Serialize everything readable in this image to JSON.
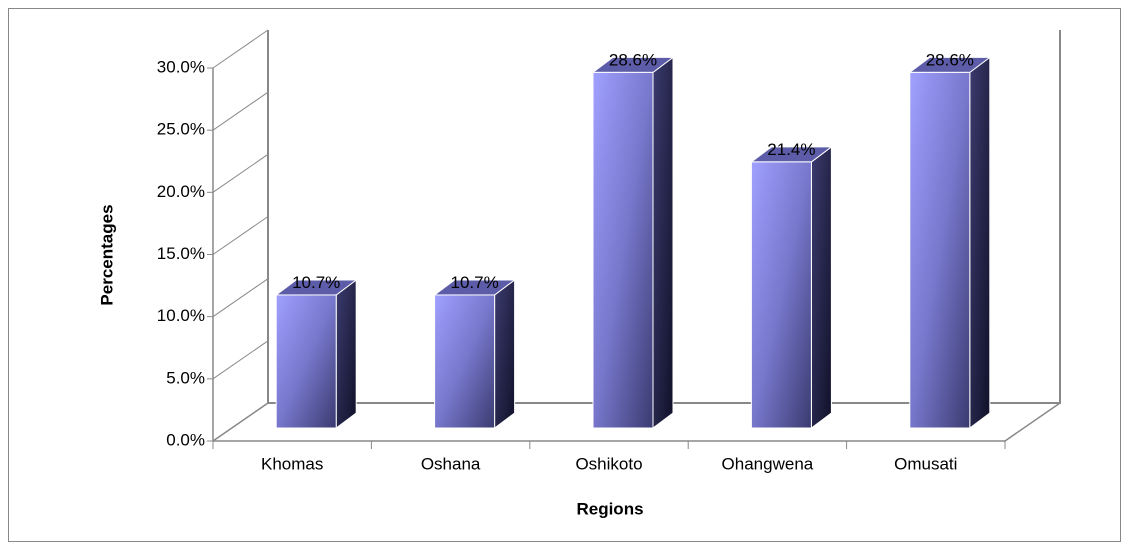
{
  "chart_data": {
    "type": "bar",
    "xlabel": "Regions",
    "ylabel": "Percentages",
    "categories": [
      "Khomas",
      "Oshana",
      "Oshikoto",
      "Ohangwena",
      "Omusati"
    ],
    "values": [
      10.7,
      10.7,
      28.6,
      21.4,
      28.6
    ],
    "value_labels": [
      "10.7%",
      "10.7%",
      "28.6%",
      "21.4%",
      "28.6%"
    ],
    "color": "#9999ff",
    "ylim": [
      0,
      30
    ],
    "yticks": [
      {
        "value": 0,
        "label": "0.0%"
      },
      {
        "value": 5,
        "label": "5.0%"
      },
      {
        "value": 10,
        "label": "10.0%"
      },
      {
        "value": 15,
        "label": "15.0%"
      },
      {
        "value": 20,
        "label": "20.0%"
      },
      {
        "value": 25,
        "label": "25.0%"
      },
      {
        "value": 30,
        "label": "30.0%"
      }
    ]
  }
}
